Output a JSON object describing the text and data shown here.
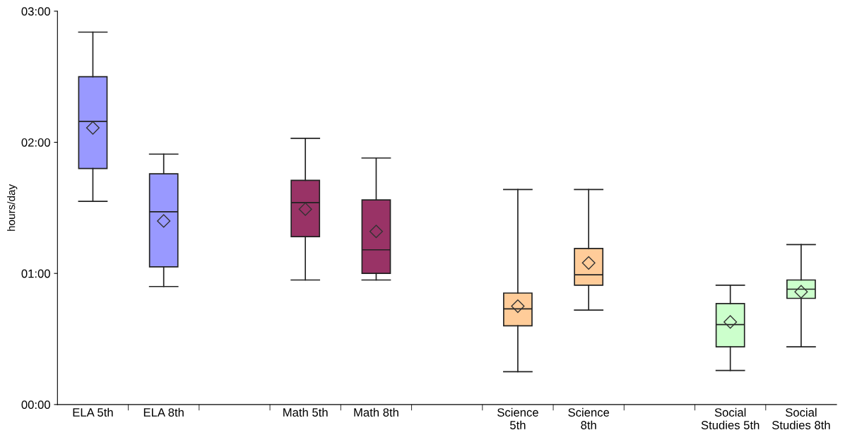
{
  "chart_data": {
    "type": "box",
    "ylabel": "hours/day",
    "categories": [
      "ELA 5th",
      "ELA 8th",
      null,
      "Math 5th",
      "Math 8th",
      null,
      "Science\n5th",
      "Science\n8th",
      null,
      "Social\nStudies 5th",
      "Social\nStudies 8th"
    ],
    "boxes": [
      {
        "low": 1.55,
        "q1": 1.8,
        "median": 2.16,
        "q3": 2.5,
        "high": 2.84,
        "mean": 2.11
      },
      {
        "low": 0.9,
        "q1": 1.05,
        "median": 1.47,
        "q3": 1.76,
        "high": 1.91,
        "mean": 1.4
      },
      null,
      {
        "low": 0.95,
        "q1": 1.28,
        "median": 1.54,
        "q3": 1.71,
        "high": 2.03,
        "mean": 1.49
      },
      {
        "low": 0.95,
        "q1": 1.0,
        "median": 1.18,
        "q3": 1.56,
        "high": 1.88,
        "mean": 1.32
      },
      null,
      {
        "low": 0.25,
        "q1": 0.6,
        "median": 0.73,
        "q3": 0.85,
        "high": 1.64,
        "mean": 0.75
      },
      {
        "low": 0.72,
        "q1": 0.91,
        "median": 0.99,
        "q3": 1.19,
        "high": 1.64,
        "mean": 1.08
      },
      null,
      {
        "low": 0.26,
        "q1": 0.44,
        "median": 0.61,
        "q3": 0.77,
        "high": 0.91,
        "mean": 0.63
      },
      {
        "low": 0.44,
        "q1": 0.81,
        "median": 0.88,
        "q3": 0.95,
        "high": 1.22,
        "mean": 0.86
      }
    ],
    "colors": [
      "#9999ff",
      "#9999ff",
      null,
      "#993366",
      "#993366",
      null,
      "#ffcc99",
      "#ffcc99",
      null,
      "#ccffcc",
      "#ccffcc"
    ],
    "ylim": [
      0,
      3
    ],
    "yticks": [
      {
        "value": 0,
        "label": "00:00"
      },
      {
        "value": 1,
        "label": "01:00"
      },
      {
        "value": 2,
        "label": "02:00"
      },
      {
        "value": 3,
        "label": "03:00"
      }
    ],
    "marker": "diamond",
    "grid": false
  }
}
